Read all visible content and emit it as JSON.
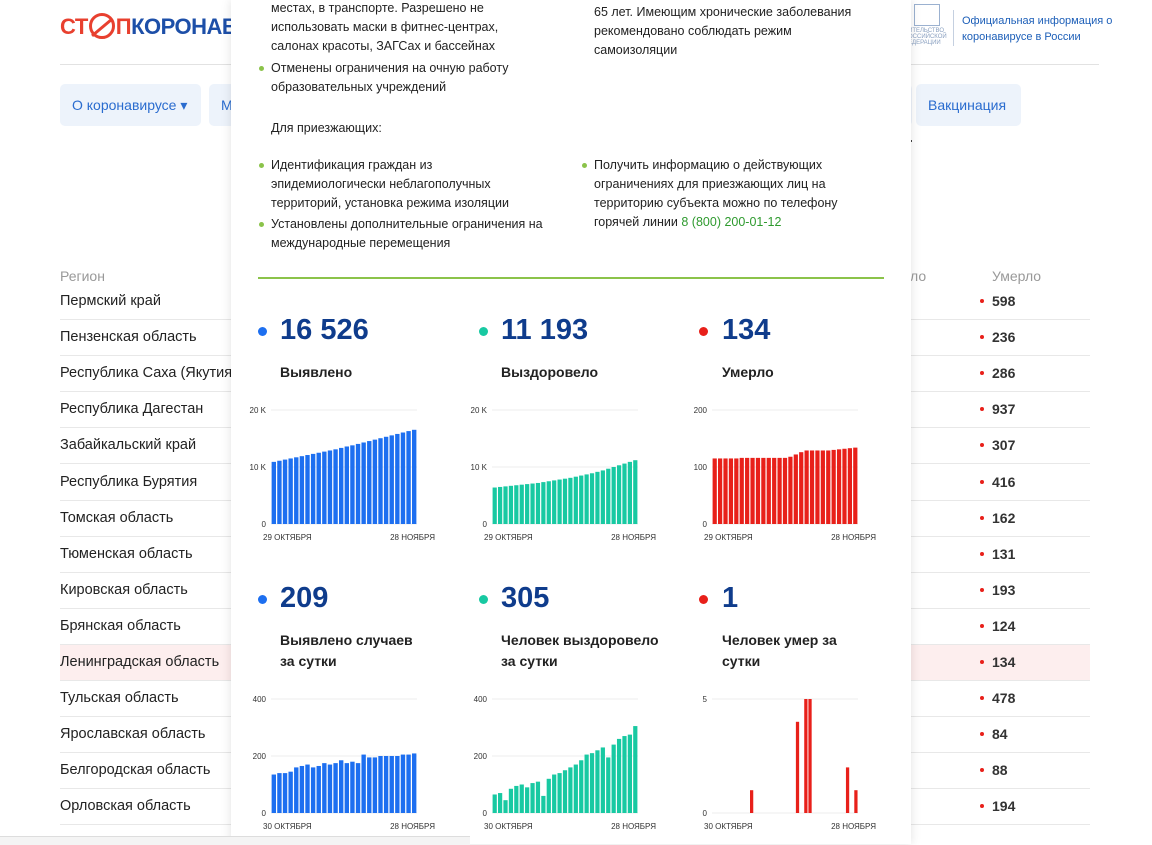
{
  "header": {
    "logo_part1": "СТ",
    "logo_part2": "П",
    "logo_part3": "КОРОНАВИ",
    "gov_emblem_text": "ИТЕЛЬСТВО ОССИЙСКОЙ ЕДЕРАЦИИ",
    "gov_info": "Официальная информация о коронавирусе в России"
  },
  "nav": {
    "item1": "О коронавирусе ▾",
    "item2": "М",
    "item4": "Вакцинация"
  },
  "table": {
    "col_region": "Регион",
    "col_partial": "ло",
    "col_died": "Умерло",
    "rows": [
      {
        "region": "Пермский край",
        "died": "598",
        "highlight": false
      },
      {
        "region": "Пензенская область",
        "died": "236",
        "highlight": false
      },
      {
        "region": "Республика Саха (Якутия)",
        "died": "286",
        "highlight": false
      },
      {
        "region": "Республика Дагестан",
        "died": "937",
        "highlight": false
      },
      {
        "region": "Забайкальский край",
        "died": "307",
        "highlight": false
      },
      {
        "region": "Республика Бурятия",
        "died": "416",
        "highlight": false
      },
      {
        "region": "Томская область",
        "died": "162",
        "highlight": false
      },
      {
        "region": "Тюменская область",
        "died": "131",
        "highlight": false
      },
      {
        "region": "Кировская область",
        "died": "193",
        "highlight": false
      },
      {
        "region": "Брянская область",
        "died": "124",
        "highlight": false
      },
      {
        "region": "Ленинградская область",
        "died": "134",
        "highlight": true
      },
      {
        "region": "Тульская область",
        "died": "478",
        "highlight": false
      },
      {
        "region": "Ярославская область",
        "died": "84",
        "highlight": false
      },
      {
        "region": "Белгородская область",
        "died": "88",
        "highlight": false
      },
      {
        "region": "Орловская область",
        "died": "194",
        "highlight": false
      }
    ]
  },
  "panel": {
    "left_text_1": "местах, в транспорте. Разрешено не использовать маски в фитнес-центрах, салонах красоты, ЗАГСах и бассейнах",
    "left_bullet_1": "Отменены ограничения на очную работу образовательных учреждений",
    "right_text_1": "65 лет. Имеющим хронические заболевания рекомендовано соблюдать режим самоизоляции",
    "arrivals_heading": "Для приезжающих:",
    "arr_bullet_1": "Идентификация граждан из эпидемиологически неблагополучных территорий, установка режима изоляции",
    "arr_bullet_2": "Установлены дополнительные ограничения на международные перемещения",
    "arr_bullet_3": "Получить информацию о действующих ограничениях для приезжающих лиц на территорию субъекта можно по телефону горячей линии",
    "hotline": "8 (800) 200-01-12",
    "stats": [
      {
        "value": "16 526",
        "label": "Выявлено",
        "color": "#1d6ff0"
      },
      {
        "value": "11 193",
        "label": "Выздоровело",
        "color": "#18c9a2"
      },
      {
        "value": "134",
        "label": "Умерло",
        "color": "#e8201a"
      },
      {
        "value": "209",
        "label": "Выявлено случаев за сутки",
        "color": "#1d6ff0"
      },
      {
        "value": "305",
        "label": "Человек выздоровело за сутки",
        "color": "#18c9a2"
      },
      {
        "value": "1",
        "label": "Человек умер за сутки",
        "color": "#e8201a"
      }
    ]
  },
  "statusbar": {
    "text": ""
  },
  "chart_data": [
    {
      "type": "bar",
      "name": "",
      "color": "#1d6ff0",
      "ylim": [
        0,
        20000
      ],
      "yticks": [
        "0",
        "10 K",
        "20 K"
      ],
      "xlabels": [
        "29 ОКТЯБРЯ",
        "28 НОЯБРЯ"
      ],
      "values": [
        10900,
        11100,
        11300,
        11500,
        11700,
        11900,
        12100,
        12300,
        12500,
        12700,
        12900,
        13100,
        13350,
        13600,
        13800,
        14050,
        14300,
        14550,
        14800,
        15050,
        15300,
        15550,
        15800,
        16050,
        16300,
        16526
      ]
    },
    {
      "type": "bar",
      "name": "",
      "color": "#18c9a2",
      "ylim": [
        0,
        20000
      ],
      "yticks": [
        "0",
        "10 K",
        "20 K"
      ],
      "xlabels": [
        "29 ОКТЯБРЯ",
        "28 НОЯБРЯ"
      ],
      "values": [
        6400,
        6500,
        6600,
        6700,
        6800,
        6900,
        7000,
        7100,
        7200,
        7350,
        7500,
        7650,
        7800,
        7950,
        8100,
        8300,
        8500,
        8700,
        8900,
        9150,
        9400,
        9700,
        10000,
        10300,
        10600,
        10900,
        11193
      ]
    },
    {
      "type": "bar",
      "name": "",
      "color": "#e8201a",
      "ylim": [
        0,
        200
      ],
      "yticks": [
        "0",
        "100",
        "200"
      ],
      "xlabels": [
        "29 ОКТЯБРЯ",
        "28 НОЯБРЯ"
      ],
      "values": [
        115,
        115,
        115,
        115,
        115,
        116,
        116,
        116,
        116,
        116,
        116,
        116,
        116,
        116,
        118,
        122,
        126,
        129,
        129,
        129,
        129,
        129,
        130,
        131,
        132,
        133,
        134
      ]
    },
    {
      "type": "bar",
      "name": "",
      "color": "#1d6ff0",
      "ylim": [
        0,
        400
      ],
      "yticks": [
        "0",
        "200",
        "400"
      ],
      "xlabels": [
        "30 ОКТЯБРЯ",
        "28 НОЯБРЯ"
      ],
      "values": [
        135,
        140,
        140,
        145,
        160,
        165,
        170,
        160,
        165,
        175,
        170,
        175,
        185,
        175,
        180,
        175,
        205,
        195,
        195,
        200,
        200,
        200,
        200,
        205,
        205,
        209
      ]
    },
    {
      "type": "bar",
      "name": "",
      "color": "#18c9a2",
      "ylim": [
        0,
        400
      ],
      "yticks": [
        "0",
        "200",
        "400"
      ],
      "xlabels": [
        "30 ОКТЯБРЯ",
        "28 НОЯБРЯ"
      ],
      "values": [
        65,
        70,
        45,
        85,
        95,
        100,
        90,
        105,
        110,
        60,
        120,
        135,
        140,
        150,
        160,
        170,
        185,
        205,
        210,
        220,
        230,
        195,
        240,
        260,
        270,
        275,
        305
      ]
    },
    {
      "type": "bar",
      "name": "",
      "color": "#e8201a",
      "ylim": [
        0,
        5
      ],
      "yticks": [
        "0",
        "5"
      ],
      "xlabels": [
        "30 ОКТЯБРЯ",
        "28 НОЯБРЯ"
      ],
      "values": [
        0,
        0,
        0,
        0,
        0,
        0,
        0,
        0,
        0,
        1,
        0,
        0,
        0,
        0,
        0,
        0,
        0,
        0,
        0,
        0,
        4,
        0,
        5,
        5,
        0,
        0,
        0,
        0,
        0,
        0,
        0,
        0,
        2,
        0,
        1
      ]
    }
  ]
}
